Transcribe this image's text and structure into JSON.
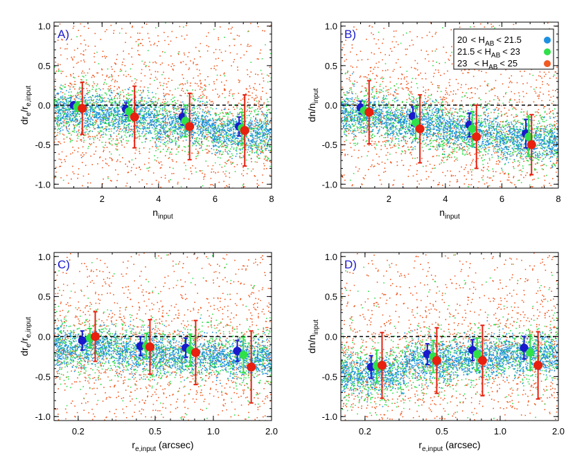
{
  "colors": {
    "blue": "#1c8fe0",
    "green": "#2fe04a",
    "orange": "#f15a22",
    "dark_blue": "#1a1acc",
    "red": "#e8200f",
    "zero_line": "#000000"
  },
  "legend": {
    "entries": [
      {
        "lo": "20",
        "hi": "21.5",
        "label_lo": "20",
        "mid": "< H",
        "sub": "AB",
        "tail": "< 21.5",
        "color": "#1c8fe0"
      },
      {
        "lo": "21.5",
        "hi": "23",
        "label_lo": "21.5",
        "mid": "< H",
        "sub": "AB",
        "tail": "< 23",
        "color": "#2fe04a"
      },
      {
        "lo": "23",
        "hi": "25",
        "label_lo": "23",
        "mid": "< H",
        "sub": "AB",
        "tail": "< 25",
        "color": "#f15a22"
      }
    ]
  },
  "chart_data": [
    {
      "panel": "A)",
      "type": "scatter",
      "xscale": "linear",
      "xlim": [
        0.3,
        8
      ],
      "ylim": [
        -1.05,
        1.05
      ],
      "xticks": [
        2,
        4,
        6,
        8
      ],
      "xtick_labels": [
        "2",
        "4",
        "6",
        "8"
      ],
      "yticks": [
        -1.0,
        -0.5,
        0.0,
        0.5,
        1.0
      ],
      "ytick_labels": [
        "-1.0",
        "-0.5",
        "0.0",
        "0.5",
        "1.0"
      ],
      "xlabel": {
        "base": "n",
        "sub": "input"
      },
      "ylabel": {
        "base": "dr",
        "sub1": "e",
        "mid": "/r",
        "sub2": "e,input"
      },
      "hline": 0.0,
      "points": [
        {
          "series": "blue",
          "x": 1.0,
          "y": 0.0,
          "err": 0.04
        },
        {
          "series": "green",
          "x": 1.12,
          "y": -0.02,
          "err": 0.06
        },
        {
          "series": "red",
          "x": 1.3,
          "y": -0.04,
          "err": 0.33
        },
        {
          "series": "blue",
          "x": 2.85,
          "y": -0.05,
          "err": 0.08
        },
        {
          "series": "green",
          "x": 2.95,
          "y": -0.08,
          "err": 0.12
        },
        {
          "series": "red",
          "x": 3.15,
          "y": -0.15,
          "err": 0.39
        },
        {
          "series": "blue",
          "x": 4.85,
          "y": -0.15,
          "err": 0.1
        },
        {
          "series": "green",
          "x": 4.95,
          "y": -0.2,
          "err": 0.2
        },
        {
          "series": "red",
          "x": 5.1,
          "y": -0.27,
          "err": 0.42
        },
        {
          "series": "blue",
          "x": 6.85,
          "y": -0.27,
          "err": 0.12
        },
        {
          "series": "green",
          "x": 6.95,
          "y": -0.29,
          "err": 0.2
        },
        {
          "series": "red",
          "x": 7.05,
          "y": -0.32,
          "err": 0.45
        }
      ]
    },
    {
      "panel": "B)",
      "type": "scatter",
      "xscale": "linear",
      "xlim": [
        0.3,
        8
      ],
      "ylim": [
        -1.05,
        1.05
      ],
      "xticks": [
        2,
        4,
        6,
        8
      ],
      "xtick_labels": [
        "2",
        "4",
        "6",
        "8"
      ],
      "yticks": [
        -1.0,
        -0.5,
        0.0,
        0.5,
        1.0
      ],
      "ytick_labels": [
        "-1.0",
        "-0.5",
        "0.0",
        "0.5",
        "1.0"
      ],
      "xlabel": {
        "base": "n",
        "sub": "input"
      },
      "ylabel": {
        "base": "dn/n",
        "sub": "input"
      },
      "hline": 0.0,
      "points": [
        {
          "series": "blue",
          "x": 1.0,
          "y": -0.03,
          "err": 0.08
        },
        {
          "series": "green",
          "x": 1.12,
          "y": -0.07,
          "err": 0.12
        },
        {
          "series": "red",
          "x": 1.3,
          "y": -0.09,
          "err": 0.4
        },
        {
          "series": "blue",
          "x": 2.85,
          "y": -0.14,
          "err": 0.12
        },
        {
          "series": "green",
          "x": 2.95,
          "y": -0.22,
          "err": 0.2
        },
        {
          "series": "red",
          "x": 3.1,
          "y": -0.3,
          "err": 0.43
        },
        {
          "series": "blue",
          "x": 4.85,
          "y": -0.25,
          "err": 0.15
        },
        {
          "series": "green",
          "x": 4.95,
          "y": -0.3,
          "err": 0.22
        },
        {
          "series": "red",
          "x": 5.1,
          "y": -0.4,
          "err": 0.4
        },
        {
          "series": "blue",
          "x": 6.85,
          "y": -0.36,
          "err": 0.18
        },
        {
          "series": "green",
          "x": 6.95,
          "y": -0.4,
          "err": 0.25
        },
        {
          "series": "red",
          "x": 7.05,
          "y": -0.5,
          "err": 0.38
        }
      ]
    },
    {
      "panel": "C)",
      "type": "scatter",
      "xscale": "log",
      "xlim": [
        0.15,
        2.0
      ],
      "ylim": [
        -1.05,
        1.05
      ],
      "xticks": [
        0.2,
        0.5,
        1.0,
        2.0
      ],
      "xtick_labels": [
        "0.2",
        "0.5",
        "1.0",
        "2.0"
      ],
      "yticks": [
        -1.0,
        -0.5,
        0.0,
        0.5,
        1.0
      ],
      "ytick_labels": [
        "-1.0",
        "-0.5",
        "0.0",
        "0.5",
        "1.0"
      ],
      "xlabel": {
        "base": "r",
        "sub": "e,input",
        "tail": " (arcsec)"
      },
      "ylabel": {
        "base": "dr",
        "sub1": "e",
        "mid": "/r",
        "sub2": "e,input"
      },
      "hline": 0.0,
      "points": [
        {
          "series": "blue",
          "x": 0.21,
          "y": -0.05,
          "err": 0.12
        },
        {
          "series": "green",
          "x": 0.23,
          "y": -0.02,
          "err": 0.12
        },
        {
          "series": "red",
          "x": 0.245,
          "y": 0.0,
          "err": 0.31
        },
        {
          "series": "blue",
          "x": 0.42,
          "y": -0.12,
          "err": 0.12
        },
        {
          "series": "green",
          "x": 0.45,
          "y": -0.12,
          "err": 0.16
        },
        {
          "series": "red",
          "x": 0.47,
          "y": -0.13,
          "err": 0.34
        },
        {
          "series": "blue",
          "x": 0.72,
          "y": -0.14,
          "err": 0.12
        },
        {
          "series": "green",
          "x": 0.76,
          "y": -0.17,
          "err": 0.2
        },
        {
          "series": "red",
          "x": 0.81,
          "y": -0.2,
          "err": 0.4
        },
        {
          "series": "blue",
          "x": 1.33,
          "y": -0.18,
          "err": 0.13
        },
        {
          "series": "green",
          "x": 1.43,
          "y": -0.23,
          "err": 0.22
        },
        {
          "series": "red",
          "x": 1.57,
          "y": -0.38,
          "err": 0.45
        }
      ]
    },
    {
      "panel": "D)",
      "type": "scatter",
      "xscale": "log",
      "xlim": [
        0.15,
        2.0
      ],
      "ylim": [
        -1.05,
        1.05
      ],
      "xticks": [
        0.2,
        0.5,
        1.0,
        2.0
      ],
      "xtick_labels": [
        "0.2",
        "0.5",
        "1.0",
        "2.0"
      ],
      "yticks": [
        -1.0,
        -0.5,
        0.0,
        0.5,
        1.0
      ],
      "ytick_labels": [
        "-1.0",
        "-0.5",
        "0.0",
        "0.5",
        "1.0"
      ],
      "xlabel": {
        "base": "r",
        "sub": "e,input",
        "tail": " (arcsec)"
      },
      "ylabel": {
        "base": "dn/n",
        "sub": "input"
      },
      "hline": 0.0,
      "points": [
        {
          "series": "blue",
          "x": 0.215,
          "y": -0.38,
          "err": 0.14
        },
        {
          "series": "green",
          "x": 0.23,
          "y": -0.37,
          "err": 0.2
        },
        {
          "series": "red",
          "x": 0.245,
          "y": -0.36,
          "err": 0.41
        },
        {
          "series": "blue",
          "x": 0.42,
          "y": -0.22,
          "err": 0.13
        },
        {
          "series": "green",
          "x": 0.45,
          "y": -0.25,
          "err": 0.2
        },
        {
          "series": "red",
          "x": 0.47,
          "y": -0.3,
          "err": 0.41
        },
        {
          "series": "blue",
          "x": 0.72,
          "y": -0.17,
          "err": 0.13
        },
        {
          "series": "green",
          "x": 0.76,
          "y": -0.22,
          "err": 0.2
        },
        {
          "series": "red",
          "x": 0.81,
          "y": -0.3,
          "err": 0.44
        },
        {
          "series": "blue",
          "x": 1.33,
          "y": -0.14,
          "err": 0.14
        },
        {
          "series": "green",
          "x": 1.43,
          "y": -0.2,
          "err": 0.22
        },
        {
          "series": "red",
          "x": 1.57,
          "y": -0.36,
          "err": 0.42
        }
      ]
    }
  ]
}
